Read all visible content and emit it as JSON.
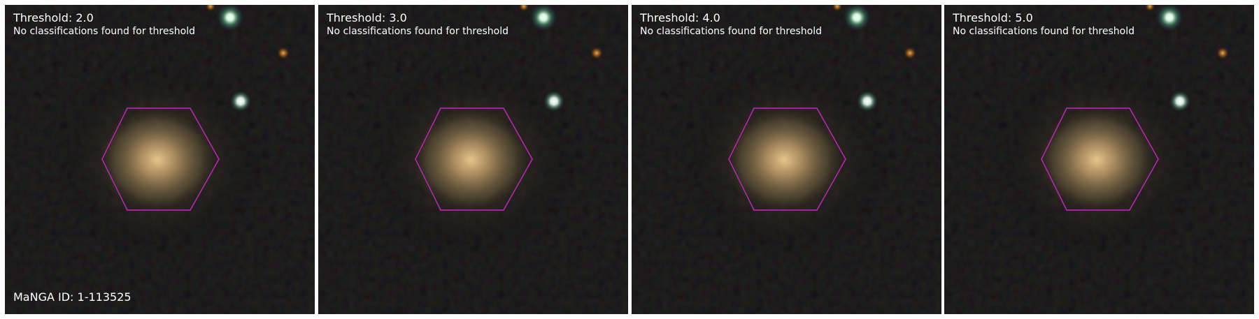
{
  "panels": [
    {
      "title": "Threshold: 2.0",
      "status": "No classifications found for threshold"
    },
    {
      "title": "Threshold: 3.0",
      "status": "No classifications found for threshold"
    },
    {
      "title": "Threshold: 4.0",
      "status": "No classifications found for threshold"
    },
    {
      "title": "Threshold: 5.0",
      "status": "No classifications found for threshold"
    }
  ],
  "manga_id": "MaNGA ID: 1-113525",
  "colors": {
    "hexagon": "#cc22cc",
    "background": "#040404",
    "text": "#ffffff"
  },
  "icons": [
    "galaxy-image",
    "ifu-hexagon-outline"
  ]
}
